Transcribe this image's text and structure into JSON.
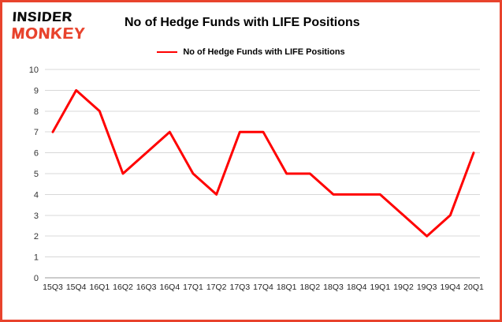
{
  "logo": {
    "line1": "INSIDER",
    "line2": "MONKEY"
  },
  "title": "No of Hedge Funds with LIFE Positions",
  "legend": {
    "label": "No of Hedge Funds with LIFE Positions",
    "color": "#ff0000"
  },
  "chart_data": {
    "type": "line",
    "title": "No of Hedge Funds with LIFE Positions",
    "categories": [
      "15Q3",
      "15Q4",
      "16Q1",
      "16Q2",
      "16Q3",
      "16Q4",
      "17Q1",
      "17Q2",
      "17Q3",
      "17Q4",
      "18Q1",
      "18Q2",
      "18Q3",
      "18Q4",
      "19Q1",
      "19Q2",
      "19Q3",
      "19Q4",
      "20Q1"
    ],
    "values": [
      7,
      9,
      8,
      5,
      6,
      7,
      5,
      4,
      7,
      7,
      5,
      5,
      4,
      4,
      4,
      3,
      2,
      3,
      6
    ],
    "series_name": "No of Hedge Funds with LIFE Positions",
    "xlabel": "",
    "ylabel": "",
    "ylim": [
      0,
      10
    ],
    "yticks": [
      0,
      1,
      2,
      3,
      4,
      5,
      6,
      7,
      8,
      9,
      10
    ],
    "grid": true,
    "legend_position": "top",
    "line_color": "#ff0000"
  },
  "colors": {
    "border": "#e8432d",
    "line": "#ff0000",
    "grid": "#d8d8d8",
    "axis": "#999999",
    "text": "#000000"
  }
}
